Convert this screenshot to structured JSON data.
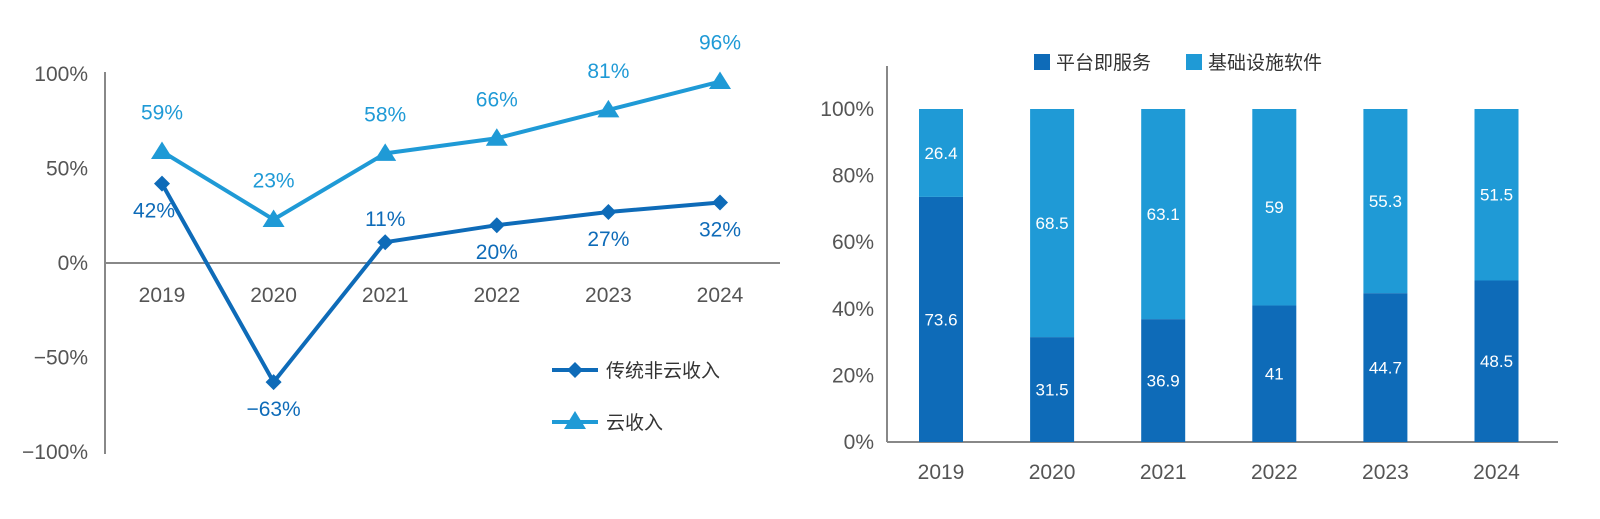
{
  "colors": {
    "dark": "#0e6bb8",
    "light": "#1f9ad6",
    "axis": "#888888",
    "text": "#555555"
  },
  "chart_data": [
    {
      "type": "line",
      "categories": [
        "2019",
        "2020",
        "2021",
        "2022",
        "2023",
        "2024"
      ],
      "ylim": [
        -100,
        100
      ],
      "yticks": [
        100,
        50,
        0,
        -50,
        -100
      ],
      "ytick_labels": [
        "100%",
        "50%",
        "0%",
        "−50%",
        "−100%"
      ],
      "legend_position": "bottom-right",
      "series": [
        {
          "name": "传统非云收入",
          "marker": "diamond",
          "color": "#0e6bb8",
          "values": [
            42,
            -63,
            11,
            20,
            27,
            32
          ],
          "labels": [
            "42%",
            "−63%",
            "11%",
            "20%",
            "27%",
            "32%"
          ]
        },
        {
          "name": "云收入",
          "marker": "triangle",
          "color": "#1f9ad6",
          "values": [
            59,
            23,
            58,
            66,
            81,
            96
          ],
          "labels": [
            "59%",
            "23%",
            "58%",
            "66%",
            "81%",
            "96%"
          ]
        }
      ]
    },
    {
      "type": "bar",
      "stacked": true,
      "categories": [
        "2019",
        "2020",
        "2021",
        "2022",
        "2023",
        "2024"
      ],
      "ylim": [
        0,
        100
      ],
      "yticks": [
        100,
        80,
        60,
        40,
        20,
        0
      ],
      "ytick_labels": [
        "100%",
        "80%",
        "60%",
        "40%",
        "20%",
        "0%"
      ],
      "legend_position": "top",
      "series": [
        {
          "name": "平台即服务",
          "color": "#0e6bb8",
          "values": [
            73.6,
            31.5,
            36.9,
            41,
            44.7,
            48.5
          ],
          "labels": [
            "73.6",
            "31.5",
            "36.9",
            "41",
            "44.7",
            "48.5"
          ]
        },
        {
          "name": "基础设施软件",
          "color": "#1f9ad6",
          "values": [
            26.4,
            68.5,
            63.1,
            59,
            55.3,
            51.5
          ],
          "labels": [
            "26.4",
            "68.5",
            "63.1",
            "59",
            "55.3",
            "51.5"
          ]
        }
      ]
    }
  ]
}
